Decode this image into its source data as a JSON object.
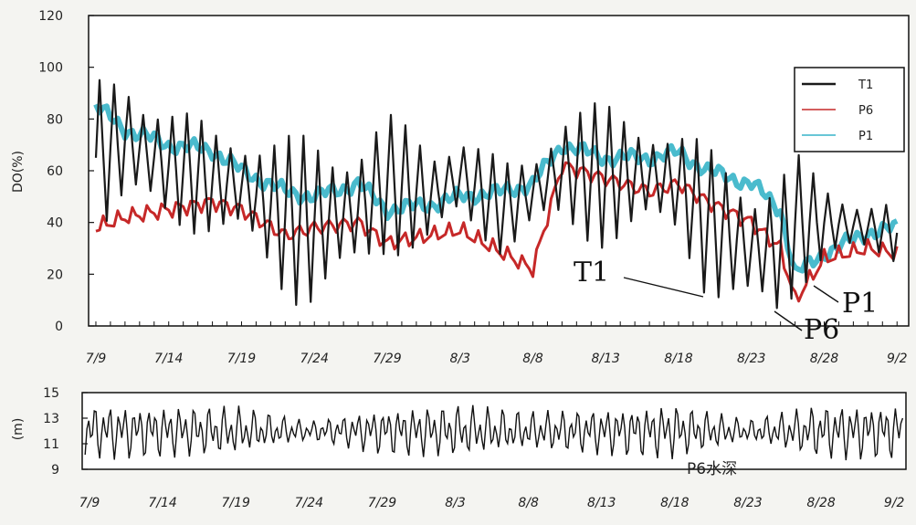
{
  "chart_data": [
    {
      "type": "line",
      "title": "",
      "ylabel": "DO(%)",
      "xlabel": "",
      "ylim": [
        0,
        120
      ],
      "yticks": [
        0,
        20,
        40,
        60,
        80,
        100,
        120
      ],
      "x_tick_labels": [
        "7/9",
        "7/14",
        "7/19",
        "7/24",
        "7/29",
        "8/3",
        "8/8",
        "8/13",
        "8/18",
        "8/23",
        "8/28",
        "9/2"
      ],
      "grid": false,
      "legend_position": "top-right",
      "x": [
        "7/9",
        "7/11",
        "7/14",
        "7/17",
        "7/19",
        "7/22",
        "7/24",
        "7/27",
        "7/29",
        "8/1",
        "8/3",
        "8/6",
        "8/8",
        "8/10",
        "8/13",
        "8/16",
        "8/18",
        "8/20",
        "8/23",
        "8/25",
        "8/26",
        "8/28",
        "8/31",
        "9/2"
      ],
      "series": [
        {
          "name": "T1",
          "color": "#1a1a1a",
          "style": "oscillating daily, envelope of mean ± amplitude",
          "values": [
            65,
            72,
            62,
            56,
            54,
            42,
            40,
            45,
            55,
            50,
            58,
            45,
            52,
            60,
            58,
            58,
            55,
            40,
            30,
            30,
            40,
            40,
            38,
            36
          ],
          "amplitude": [
            30,
            30,
            24,
            22,
            25,
            32,
            35,
            30,
            28,
            22,
            20,
            18,
            15,
            28,
            28,
            25,
            22,
            30,
            30,
            32,
            28,
            15,
            12,
            12
          ]
        },
        {
          "name": "P6",
          "color": "#c62828",
          "values": [
            38,
            42,
            45,
            48,
            45,
            35,
            38,
            40,
            32,
            35,
            37,
            28,
            22,
            62,
            57,
            52,
            55,
            48,
            40,
            30,
            10,
            26,
            30,
            28
          ]
        },
        {
          "name": "P1",
          "color": "#36b4c8",
          "values": [
            85,
            76,
            70,
            68,
            60,
            52,
            50,
            55,
            45,
            47,
            50,
            52,
            55,
            70,
            65,
            65,
            67,
            60,
            55,
            45,
            20,
            28,
            36,
            38
          ]
        }
      ],
      "annotations": [
        "T1",
        "P6",
        "P1"
      ]
    },
    {
      "type": "line",
      "title": "",
      "ylabel": "(m)",
      "ylim": [
        9,
        15
      ],
      "yticks": [
        9,
        11,
        13,
        15
      ],
      "x_tick_labels": [
        "7/9",
        "7/14",
        "7/19",
        "7/24",
        "7/29",
        "8/3",
        "8/8",
        "8/13",
        "8/18",
        "8/23",
        "8/28",
        "9/2"
      ],
      "grid": false,
      "series_label": "P6水深",
      "series": [
        {
          "name": "P6水深",
          "color": "#111111",
          "mean_level": 12,
          "amplitude_by_date": {
            "x": [
              "7/9",
              "7/19",
              "7/24",
              "7/29",
              "8/3",
              "8/8",
              "8/18",
              "8/23",
              "8/28",
              "9/2"
            ],
            "values": [
              2.6,
              2.3,
              0.9,
              2.2,
              2.5,
              1.8,
              2.6,
              1.0,
              2.6,
              2.6
            ]
          }
        }
      ]
    }
  ]
}
